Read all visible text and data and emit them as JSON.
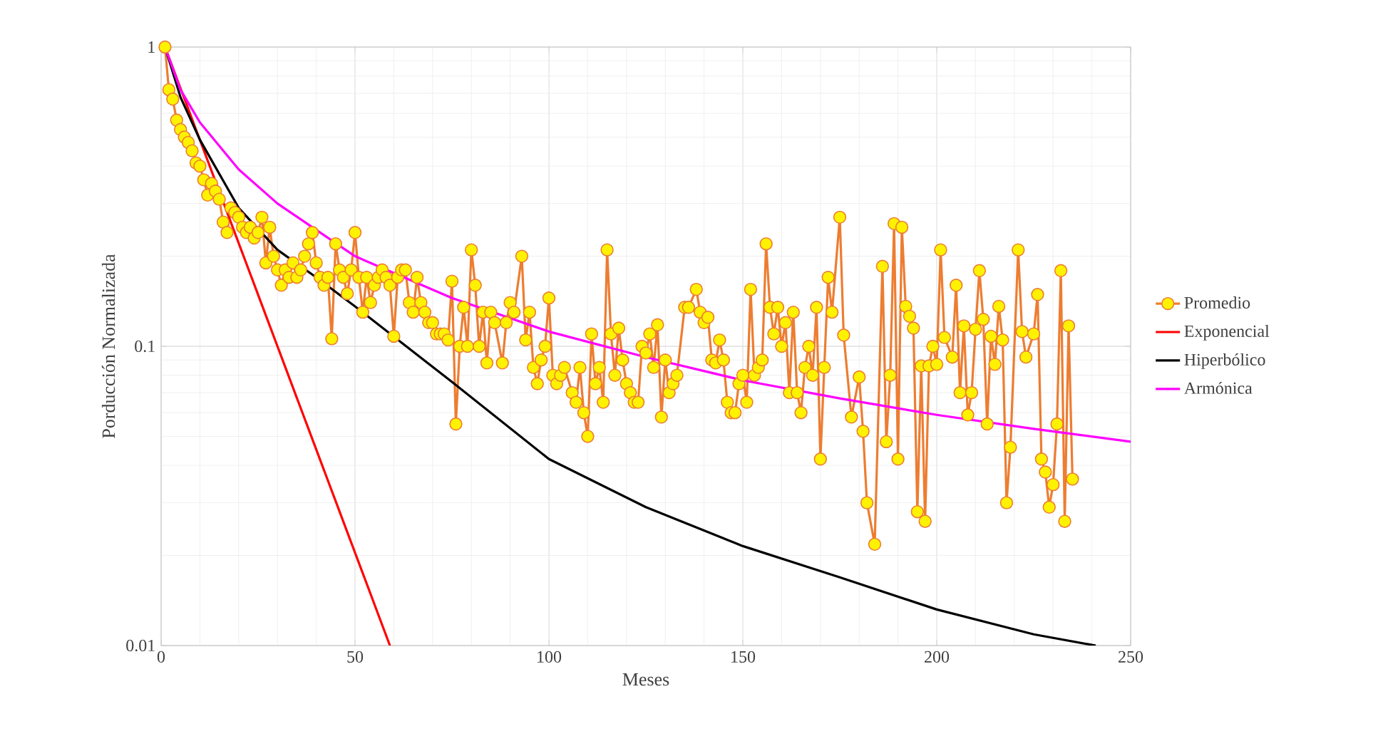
{
  "chart_data": {
    "type": "line",
    "xlabel": "Meses",
    "ylabel": "Porducción Normalizada",
    "xlim": [
      0,
      250
    ],
    "xticks": [
      0,
      50,
      100,
      150,
      200,
      250
    ],
    "ylim": [
      0.01,
      1
    ],
    "yticks": [
      0.01,
      0.1,
      1
    ],
    "log": "y",
    "grid": true,
    "legend": "right",
    "series": [
      {
        "name": "Promedio",
        "color": "#ed7d31",
        "marker": "circle",
        "x": [
          1,
          2,
          3,
          4,
          5,
          6,
          7,
          8,
          9,
          10,
          11,
          12,
          13,
          14,
          15,
          16,
          17,
          18,
          19,
          20,
          21,
          22,
          23,
          24,
          25,
          26,
          27,
          28,
          29,
          30,
          31,
          32,
          33,
          34,
          35,
          36,
          37,
          38,
          39,
          40,
          41,
          42,
          43,
          44,
          45,
          46,
          47,
          48,
          49,
          50,
          51,
          52,
          53,
          54,
          55,
          56,
          57,
          58,
          59,
          60,
          61,
          62,
          63,
          64,
          65,
          66,
          67,
          68,
          69,
          70,
          71,
          72,
          73,
          74,
          75,
          76,
          77,
          78,
          79,
          80,
          81,
          82,
          83,
          84,
          85,
          86,
          88,
          89,
          90,
          91,
          93,
          94,
          95,
          96,
          97,
          98,
          99,
          100,
          101,
          102,
          103,
          104,
          106,
          107,
          108,
          109,
          110,
          111,
          112,
          113,
          114,
          115,
          116,
          117,
          118,
          119,
          120,
          121,
          122,
          123,
          124,
          125,
          126,
          127,
          128,
          129,
          130,
          131,
          132,
          133,
          135,
          136,
          138,
          139,
          140,
          141,
          142,
          143,
          144,
          145,
          146,
          147,
          148,
          149,
          150,
          151,
          152,
          153,
          154,
          155,
          156,
          157,
          158,
          159,
          160,
          161,
          162,
          163,
          164,
          165,
          166,
          167,
          168,
          169,
          170,
          171,
          172,
          173,
          175,
          176,
          178,
          180,
          181,
          182,
          184,
          186,
          187,
          188,
          189,
          190,
          191,
          192,
          193,
          194,
          195,
          196,
          197,
          198,
          199,
          200,
          201,
          202,
          204,
          205,
          206,
          207,
          208,
          209,
          210,
          211,
          212,
          213,
          214,
          215,
          216,
          217,
          218,
          219,
          221,
          222,
          223,
          225,
          226,
          227,
          228,
          229,
          230,
          231,
          232,
          233,
          234,
          235
        ],
        "values": [
          1,
          0.72,
          0.67,
          0.57,
          0.53,
          0.5,
          0.48,
          0.45,
          0.41,
          0.4,
          0.36,
          0.32,
          0.35,
          0.33,
          0.31,
          0.26,
          0.24,
          0.29,
          0.28,
          0.27,
          0.25,
          0.24,
          0.25,
          0.23,
          0.24,
          0.27,
          0.19,
          0.25,
          0.2,
          0.18,
          0.16,
          0.18,
          0.17,
          0.19,
          0.17,
          0.18,
          0.2,
          0.22,
          0.24,
          0.19,
          0.17,
          0.16,
          0.17,
          0.106,
          0.22,
          0.18,
          0.17,
          0.15,
          0.18,
          0.24,
          0.17,
          0.13,
          0.17,
          0.14,
          0.16,
          0.17,
          0.18,
          0.17,
          0.16,
          0.108,
          0.17,
          0.18,
          0.18,
          0.14,
          0.13,
          0.17,
          0.14,
          0.13,
          0.12,
          0.12,
          0.11,
          0.11,
          0.11,
          0.105,
          0.165,
          0.055,
          0.1,
          0.135,
          0.1,
          0.21,
          0.16,
          0.1,
          0.13,
          0.088,
          0.13,
          0.12,
          0.088,
          0.12,
          0.14,
          0.13,
          0.2,
          0.105,
          0.13,
          0.085,
          0.075,
          0.09,
          0.1,
          0.145,
          0.08,
          0.075,
          0.08,
          0.085,
          0.07,
          0.065,
          0.085,
          0.06,
          0.05,
          0.11,
          0.075,
          0.085,
          0.065,
          0.21,
          0.11,
          0.08,
          0.115,
          0.09,
          0.075,
          0.07,
          0.065,
          0.065,
          0.1,
          0.095,
          0.11,
          0.085,
          0.118,
          0.058,
          0.09,
          0.07,
          0.075,
          0.08,
          0.135,
          0.135,
          0.155,
          0.13,
          0.12,
          0.125,
          0.09,
          0.088,
          0.105,
          0.09,
          0.065,
          0.06,
          0.06,
          0.075,
          0.08,
          0.065,
          0.155,
          0.08,
          0.085,
          0.09,
          0.22,
          0.135,
          0.11,
          0.135,
          0.1,
          0.12,
          0.07,
          0.13,
          0.07,
          0.06,
          0.085,
          0.1,
          0.08,
          0.135,
          0.042,
          0.085,
          0.17,
          0.13,
          0.27,
          0.109,
          0.058,
          0.079,
          0.052,
          0.03,
          0.0218,
          0.185,
          0.048,
          0.08,
          0.257,
          0.042,
          0.25,
          0.136,
          0.126,
          0.115,
          0.028,
          0.086,
          0.026,
          0.086,
          0.1,
          0.087,
          0.21,
          0.107,
          0.092,
          0.16,
          0.07,
          0.117,
          0.059,
          0.07,
          0.114,
          0.179,
          0.123,
          0.055,
          0.108,
          0.087,
          0.136,
          0.105,
          0.03,
          0.046,
          0.21,
          0.112,
          0.092,
          0.11,
          0.149,
          0.042,
          0.038,
          0.029,
          0.0345,
          0.055,
          0.179,
          0.026,
          0.117,
          0.036
        ]
      },
      {
        "name": "Exponencial",
        "color": "#ff0000",
        "marker": "none",
        "x": [
          1,
          59
        ],
        "values": [
          1,
          0.01
        ]
      },
      {
        "name": "Hiperbólico",
        "color": "#000000",
        "marker": "none",
        "x": [
          1,
          5,
          10,
          20,
          30,
          40,
          50,
          75,
          100,
          125,
          150,
          175,
          200,
          225,
          241
        ],
        "values": [
          1,
          0.68,
          0.49,
          0.29,
          0.21,
          0.17,
          0.136,
          0.076,
          0.042,
          0.029,
          0.0215,
          0.0169,
          0.0132,
          0.0109,
          0.01
        ]
      },
      {
        "name": "Armónica",
        "color": "#ff00ff",
        "marker": "none",
        "x": [
          1,
          5,
          10,
          20,
          30,
          50,
          75,
          100,
          125,
          150,
          175,
          200,
          225,
          250
        ],
        "values": [
          1,
          0.72,
          0.56,
          0.39,
          0.3,
          0.2,
          0.145,
          0.112,
          0.092,
          0.077,
          0.067,
          0.059,
          0.053,
          0.048
        ]
      }
    ]
  }
}
